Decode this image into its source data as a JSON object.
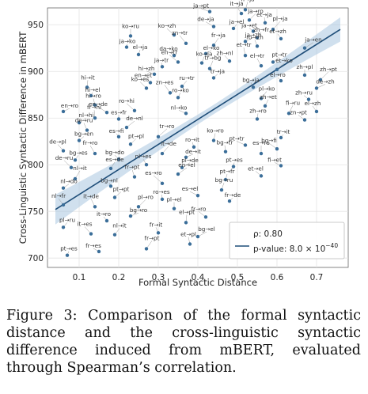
{
  "caption": "Figure 3:  Comparison of the formal syntactic distance and the cross-linguistic syntactic difference induced from mBERT, evaluated through Spearman’s correlation.",
  "legend": {
    "rho": "ρ: 0.80",
    "pvalue_prefix": "p-value: 8.0 × 10",
    "pvalue_exp": "−40"
  },
  "chart_data": {
    "type": "scatter",
    "xlabel": "Formal Syntactic Distance",
    "ylabel": "Cross-Linguistic Syntactic Difference in mBERT",
    "xlim": [
      0.02,
      0.78
    ],
    "ylim": [
      690,
      968
    ],
    "xticks": [
      0.1,
      0.2,
      0.3,
      0.4,
      0.5,
      0.6,
      0.7
    ],
    "yticks": [
      700,
      750,
      800,
      850,
      900,
      950
    ],
    "grid": true,
    "legend_position": "lower-right",
    "point_color": "#3b6e99",
    "line_color": "#1f4e79",
    "band_color": "#a9c6e0",
    "regression": {
      "x0": 0.04,
      "y0": 752,
      "x1": 0.76,
      "y1": 945,
      "band_start": 5,
      "band_end": 16
    },
    "points": [
      {
        "x": 0.43,
        "y": 964,
        "label": "ja→pt"
      },
      {
        "x": 0.52,
        "y": 966,
        "label": "fi→ja"
      },
      {
        "x": 0.51,
        "y": 962,
        "label": "it→ja"
      },
      {
        "x": 0.53,
        "y": 955,
        "label": "ja→ro"
      },
      {
        "x": 0.57,
        "y": 952,
        "label": "et→ja"
      },
      {
        "x": 0.44,
        "y": 948,
        "label": "de→ja"
      },
      {
        "x": 0.49,
        "y": 946,
        "label": "ja→el"
      },
      {
        "x": 0.54,
        "y": 943,
        "label": "ja→et"
      },
      {
        "x": 0.59,
        "y": 945,
        "label": "pl→ja"
      },
      {
        "x": 0.23,
        "y": 938,
        "label": "ko→ru"
      },
      {
        "x": 0.34,
        "y": 939,
        "label": "ko→zh"
      },
      {
        "x": 0.55,
        "y": 936,
        "label": "zh→fr"
      },
      {
        "x": 0.61,
        "y": 935,
        "label": "et→zh"
      },
      {
        "x": 0.52,
        "y": 932,
        "label": "ja→zh"
      },
      {
        "x": 0.22,
        "y": 926,
        "label": "ja→ko"
      },
      {
        "x": 0.37,
        "y": 930,
        "label": "zn→tr"
      },
      {
        "x": 0.44,
        "y": 928,
        "label": "fr→ja"
      },
      {
        "x": 0.55,
        "y": 927,
        "label": "ro→zh"
      },
      {
        "x": 0.67,
        "y": 925,
        "label": "ja→en"
      },
      {
        "x": 0.25,
        "y": 918,
        "label": "el→ja"
      },
      {
        "x": 0.34,
        "y": 917,
        "label": "da→ko"
      },
      {
        "x": 0.42,
        "y": 919,
        "label": "el→ko"
      },
      {
        "x": 0.52,
        "y": 917,
        "label": "et→tr"
      },
      {
        "x": 0.35,
        "y": 910,
        "label": "en→tr"
      },
      {
        "x": 0.41,
        "y": 909,
        "label": "ko→ja"
      },
      {
        "x": 0.48,
        "y": 911,
        "label": "zh→nl"
      },
      {
        "x": 0.59,
        "y": 910,
        "label": "pt→tr"
      },
      {
        "x": 0.31,
        "y": 905,
        "label": "ja→tr"
      },
      {
        "x": 0.29,
        "y": 897,
        "label": "hi→zh"
      },
      {
        "x": 0.43,
        "y": 903,
        "label": "tr→bg"
      },
      {
        "x": 0.56,
        "y": 906,
        "label": "el→tr"
      },
      {
        "x": 0.6,
        "y": 902,
        "label": "et→ko"
      },
      {
        "x": 0.67,
        "y": 896,
        "label": "zh→pl"
      },
      {
        "x": 0.28,
        "y": 888,
        "label": "en→et"
      },
      {
        "x": 0.44,
        "y": 893,
        "label": "tr→ja"
      },
      {
        "x": 0.61,
        "y": 890,
        "label": "el→ro"
      },
      {
        "x": 0.71,
        "y": 891,
        "label": "zh→pt"
      },
      {
        "x": 0.12,
        "y": 883,
        "label": "hi→it"
      },
      {
        "x": 0.27,
        "y": 882,
        "label": "ko→es"
      },
      {
        "x": 0.36,
        "y": 884,
        "label": "ru→tr"
      },
      {
        "x": 0.54,
        "y": 883,
        "label": "bg→ja"
      },
      {
        "x": 0.7,
        "y": 882,
        "label": "de→zh"
      },
      {
        "x": 0.13,
        "y": 874,
        "label": "hi→el"
      },
      {
        "x": 0.33,
        "y": 877,
        "label": "zn→es"
      },
      {
        "x": 0.56,
        "y": 871,
        "label": "pl→ko"
      },
      {
        "x": 0.14,
        "y": 864,
        "label": "hi→ro"
      },
      {
        "x": 0.17,
        "y": 856,
        "label": "en→de"
      },
      {
        "x": 0.35,
        "y": 872,
        "label": "ro→ko"
      },
      {
        "x": 0.68,
        "y": 870,
        "label": "zh→ru"
      },
      {
        "x": 0.06,
        "y": 857,
        "label": "en→ro"
      },
      {
        "x": 0.14,
        "y": 850,
        "label": "fr→hi"
      },
      {
        "x": 0.24,
        "y": 858,
        "label": "ro→hi"
      },
      {
        "x": 0.57,
        "y": 863,
        "label": "zh→et"
      },
      {
        "x": 0.7,
        "y": 857,
        "label": "el→zh"
      },
      {
        "x": 0.1,
        "y": 845,
        "label": "nl→hi"
      },
      {
        "x": 0.2,
        "y": 849,
        "label": "es→fr"
      },
      {
        "x": 0.37,
        "y": 855,
        "label": "nl→ko"
      },
      {
        "x": 0.63,
        "y": 855,
        "label": "fi→ru"
      },
      {
        "x": 0.12,
        "y": 837,
        "label": "de→ru"
      },
      {
        "x": 0.22,
        "y": 840,
        "label": "de→nl"
      },
      {
        "x": 0.55,
        "y": 849,
        "label": "zh→ro"
      },
      {
        "x": 0.67,
        "y": 848,
        "label": "zn→pt"
      },
      {
        "x": 0.1,
        "y": 826,
        "label": "bg→en"
      },
      {
        "x": 0.2,
        "y": 830,
        "label": "es→fi"
      },
      {
        "x": 0.3,
        "y": 830,
        "label": "tr→ro"
      },
      {
        "x": 0.44,
        "y": 826,
        "label": "ko→ro"
      },
      {
        "x": 0.06,
        "y": 815,
        "label": "de→pl"
      },
      {
        "x": 0.23,
        "y": 822,
        "label": "pt→pl"
      },
      {
        "x": 0.39,
        "y": 819,
        "label": "ro→it"
      },
      {
        "x": 0.52,
        "y": 821,
        "label": "pt→tr"
      },
      {
        "x": 0.61,
        "y": 829,
        "label": "tr→it"
      },
      {
        "x": 0.14,
        "y": 812,
        "label": "fr→ro"
      },
      {
        "x": 0.31,
        "y": 812,
        "label": "it→de"
      },
      {
        "x": 0.47,
        "y": 814,
        "label": "bg→tr"
      },
      {
        "x": 0.6,
        "y": 817,
        "label": "bg→fi"
      },
      {
        "x": 0.09,
        "y": 805,
        "label": "bg→es"
      },
      {
        "x": 0.2,
        "y": 806,
        "label": "bg→do"
      },
      {
        "x": 0.37,
        "y": 808,
        "label": "de→it"
      },
      {
        "x": 0.56,
        "y": 812,
        "label": "es→ru"
      },
      {
        "x": 0.08,
        "y": 797,
        "label": "de→ru"
      },
      {
        "x": 0.18,
        "y": 796,
        "label": "es→de"
      },
      {
        "x": 0.27,
        "y": 800,
        "label": "nl→es"
      },
      {
        "x": 0.36,
        "y": 797,
        "label": "pl→de"
      },
      {
        "x": 0.49,
        "y": 798,
        "label": "pt→es"
      },
      {
        "x": 0.61,
        "y": 799,
        "label": "fi→et"
      },
      {
        "x": 0.09,
        "y": 785,
        "label": "nl→it"
      },
      {
        "x": 0.24,
        "y": 787,
        "label": "fr→pt"
      },
      {
        "x": 0.35,
        "y": 790,
        "label": "en→el"
      },
      {
        "x": 0.47,
        "y": 784,
        "label": "pt→fr"
      },
      {
        "x": 0.56,
        "y": 788,
        "label": "et→el"
      },
      {
        "x": 0.06,
        "y": 775,
        "label": "nl→do"
      },
      {
        "x": 0.18,
        "y": 777,
        "label": "bg→nl"
      },
      {
        "x": 0.31,
        "y": 780,
        "label": "es→ro"
      },
      {
        "x": 0.46,
        "y": 773,
        "label": "bg→ru"
      },
      {
        "x": 0.06,
        "y": 757,
        "label": "nl→fr"
      },
      {
        "x": 0.19,
        "y": 765,
        "label": "pt→pt"
      },
      {
        "x": 0.31,
        "y": 763,
        "label": "ro→es"
      },
      {
        "x": 0.4,
        "y": 767,
        "label": "es→el"
      },
      {
        "x": 0.48,
        "y": 761,
        "label": "fr→de"
      },
      {
        "x": 0.14,
        "y": 755,
        "label": "it→de"
      },
      {
        "x": 0.25,
        "y": 755,
        "label": "pl→ro"
      },
      {
        "x": 0.34,
        "y": 753,
        "label": "pl→el"
      },
      {
        "x": 0.42,
        "y": 744,
        "label": "fr→ro"
      },
      {
        "x": 0.06,
        "y": 733,
        "label": "pl→ru"
      },
      {
        "x": 0.17,
        "y": 740,
        "label": "it→ro"
      },
      {
        "x": 0.23,
        "y": 745,
        "label": "bg→ro"
      },
      {
        "x": 0.37,
        "y": 738,
        "label": "el→pt"
      },
      {
        "x": 0.13,
        "y": 726,
        "label": "it→es"
      },
      {
        "x": 0.19,
        "y": 725,
        "label": "nl→it"
      },
      {
        "x": 0.3,
        "y": 727,
        "label": "fr→it"
      },
      {
        "x": 0.4,
        "y": 723,
        "label": "bg→el"
      },
      {
        "x": 0.07,
        "y": 703,
        "label": "pt→es"
      },
      {
        "x": 0.15,
        "y": 707,
        "label": "fr→es"
      },
      {
        "x": 0.27,
        "y": 710,
        "label": "fr→pt"
      },
      {
        "x": 0.38,
        "y": 715,
        "label": "et→pl"
      }
    ]
  }
}
